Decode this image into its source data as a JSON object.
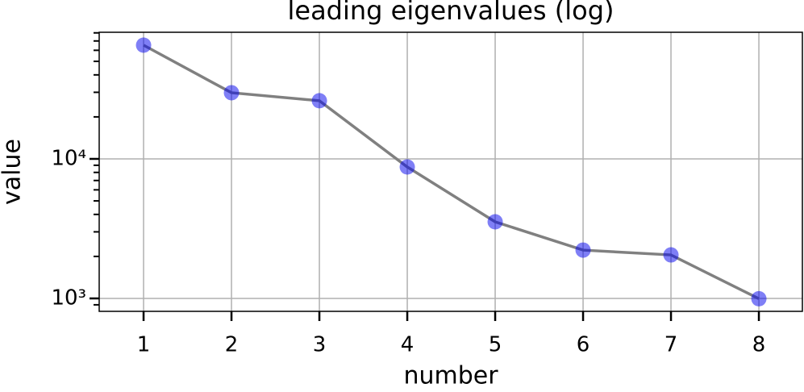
{
  "chart_data": {
    "type": "line",
    "title": "leading eigenvalues (log)",
    "xlabel": "number",
    "ylabel": "value",
    "x": [
      1,
      2,
      3,
      4,
      5,
      6,
      7,
      8
    ],
    "values": [
      65300,
      29800,
      26100,
      8750,
      3540,
      2220,
      2050,
      995
    ],
    "color": "#0000ee",
    "line_color": "#808080",
    "xlim": [
      0.495,
      8.495
    ],
    "xticks": [
      1,
      2,
      3,
      4,
      5,
      6,
      7,
      8
    ],
    "ylim": [
      808,
      80800
    ],
    "yscale": "log",
    "yticks": [
      {
        "value": 1000,
        "label": "10³"
      },
      {
        "value": 10000,
        "label": "10⁴"
      }
    ],
    "yminorticks": [
      900,
      2000,
      3000,
      4000,
      5000,
      6000,
      7000,
      8000,
      9000,
      20000,
      30000,
      40000,
      50000,
      60000,
      70000,
      80000
    ],
    "grid": true
  }
}
